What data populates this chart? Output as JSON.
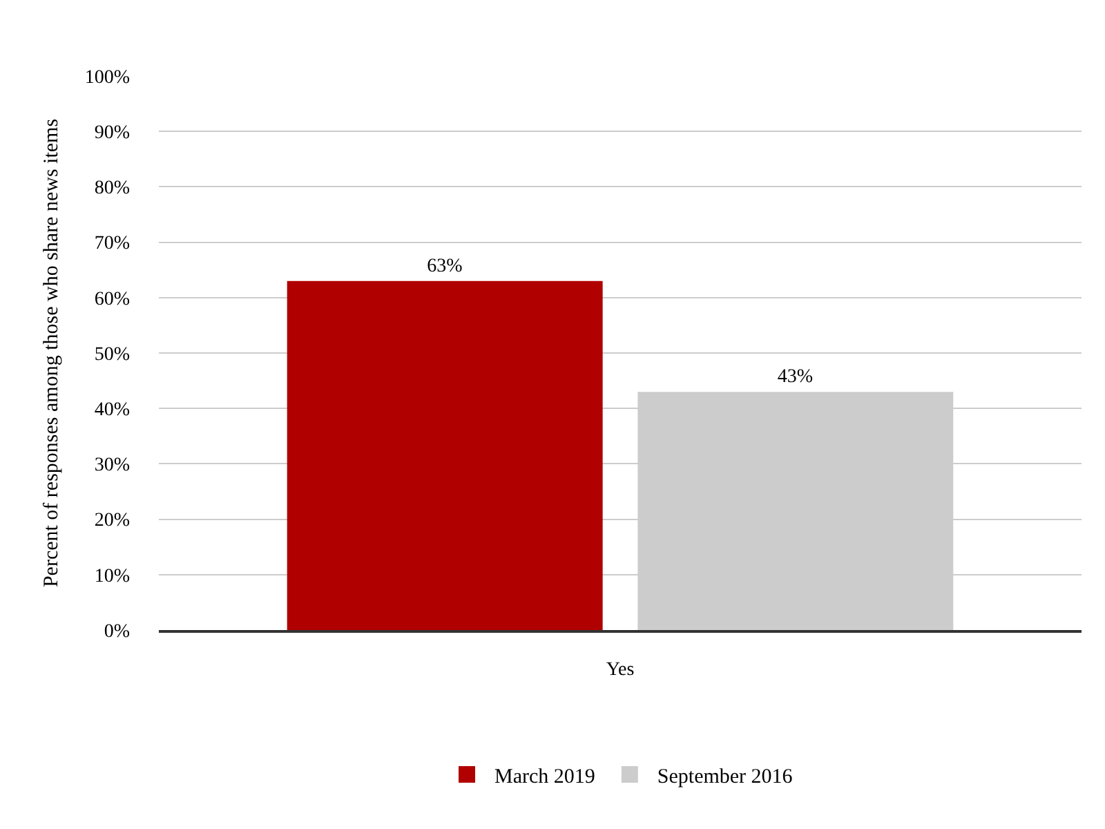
{
  "chart_data": {
    "type": "bar",
    "ylabel": "Percent of responses among those who share news items",
    "categories": [
      "Yes"
    ],
    "series": [
      {
        "name": "March 2019",
        "color": "#b00000",
        "values": [
          63
        ],
        "value_labels": [
          "63%"
        ]
      },
      {
        "name": "September 2016",
        "color": "#cccccc",
        "values": [
          43
        ],
        "value_labels": [
          "43%"
        ]
      }
    ],
    "ylim": [
      0,
      100
    ],
    "yticks": [
      {
        "value": 0,
        "label": "0%"
      },
      {
        "value": 10,
        "label": "10%"
      },
      {
        "value": 20,
        "label": "20%"
      },
      {
        "value": 30,
        "label": "30%"
      },
      {
        "value": 40,
        "label": "40%"
      },
      {
        "value": 50,
        "label": "50%"
      },
      {
        "value": 60,
        "label": "60%"
      },
      {
        "value": 70,
        "label": "70%"
      },
      {
        "value": 80,
        "label": "80%"
      },
      {
        "value": 90,
        "label": "90%"
      },
      {
        "value": 100,
        "label": "100%"
      }
    ],
    "grid": "y",
    "legend": "bottom"
  }
}
